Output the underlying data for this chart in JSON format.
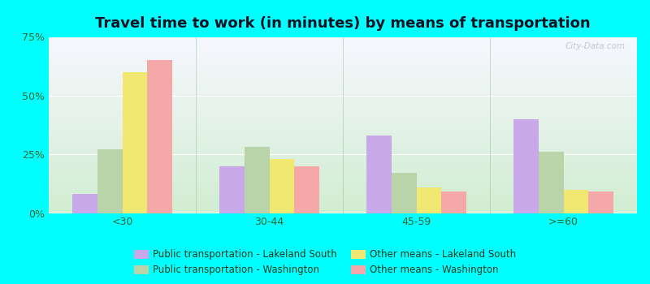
{
  "title": "Travel time to work (in minutes) by means of transportation",
  "categories": [
    "<30",
    "30-44",
    "45-59",
    ">=60"
  ],
  "series": {
    "pub_lakeland": [
      8,
      20,
      33,
      40
    ],
    "pub_washington": [
      27,
      28,
      17,
      26
    ],
    "other_lakeland": [
      60,
      23,
      11,
      10
    ],
    "other_washington": [
      65,
      20,
      9,
      9
    ]
  },
  "colors": {
    "pub_lakeland": "#c8a8e8",
    "pub_washington": "#b8d4a8",
    "other_lakeland": "#f0e870",
    "other_washington": "#f4a8a8"
  },
  "legend_labels": {
    "pub_lakeland": "Public transportation - Lakeland South",
    "pub_washington": "Public transportation - Washington",
    "other_lakeland": "Other means - Lakeland South",
    "other_washington": "Other means - Washington"
  },
  "legend_order": [
    "pub_lakeland",
    "pub_washington",
    "other_lakeland",
    "other_washington"
  ],
  "series_order": [
    "pub_lakeland",
    "pub_washington",
    "other_lakeland",
    "other_washington"
  ],
  "ylim": [
    0,
    75
  ],
  "yticks": [
    0,
    25,
    50,
    75
  ],
  "ytick_labels": [
    "0%",
    "25%",
    "50%",
    "75%"
  ],
  "outer_background": "#00ffff",
  "title_fontsize": 13,
  "tick_fontsize": 9,
  "legend_fontsize": 8.5
}
